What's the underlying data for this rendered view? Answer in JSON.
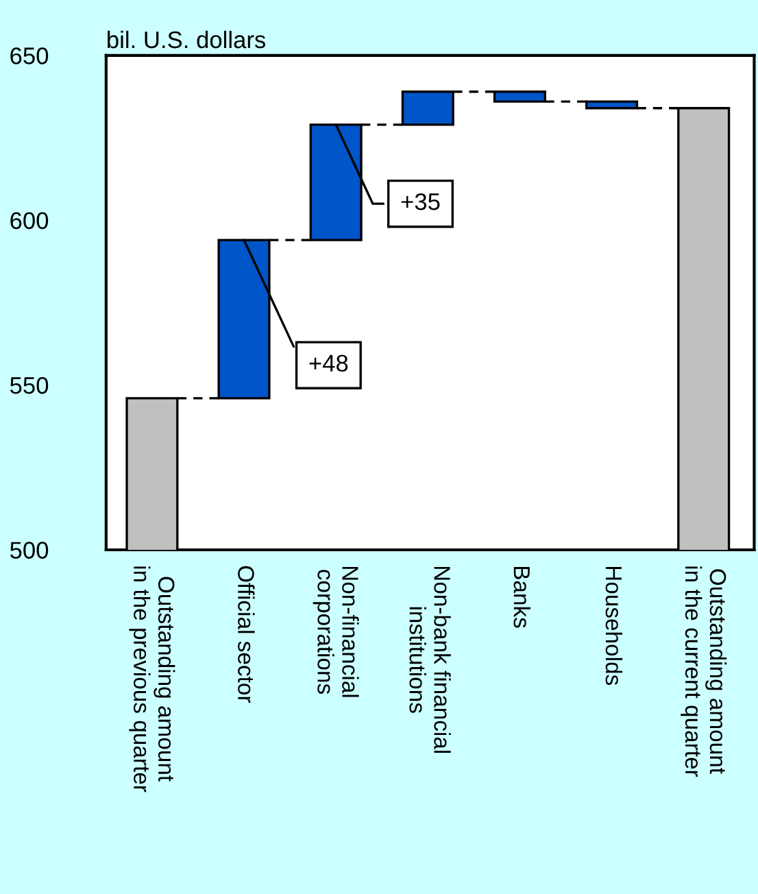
{
  "chart_data": {
    "type": "bar",
    "ylabel": "bil. U.S. dollars",
    "categories": [
      "Outstanding amount\nin the previous quarter",
      "Official sector",
      "Non-financial\ncorporations",
      "Non-bank financial\ninstitutions",
      "Banks",
      "Households",
      "Outstanding amount\nin the current quarter"
    ],
    "values": [
      546,
      48,
      35,
      10,
      -3,
      -2,
      634
    ],
    "base": [
      null,
      546,
      594,
      629,
      639,
      636,
      null
    ],
    "colors": [
      "#c0c0c0",
      "#0055c8",
      "#0055c8",
      "#0055c8",
      "#0055c8",
      "#0055c8",
      "#c0c0c0"
    ],
    "ylim": [
      500,
      650
    ],
    "yticks": [
      500,
      550,
      600,
      650
    ],
    "grid": false,
    "legend": false,
    "annotations": [
      {
        "text": "+48",
        "x": "Official sector",
        "y": 594
      },
      {
        "text": "+35",
        "x": "Non-financial\ncorporations",
        "y": 629
      }
    ]
  }
}
